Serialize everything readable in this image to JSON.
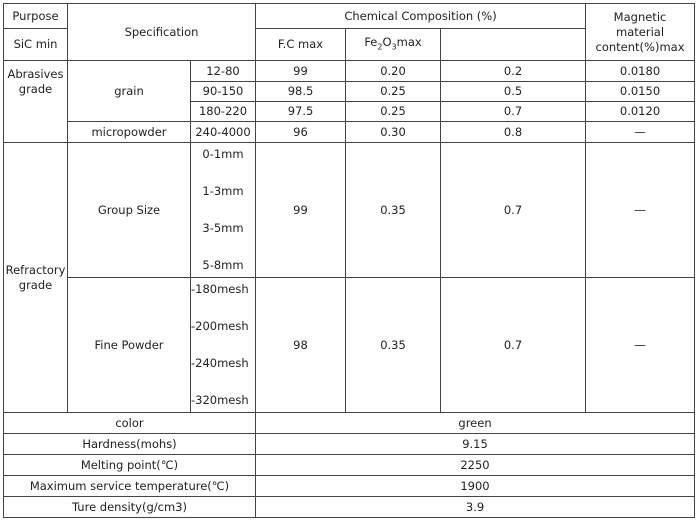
{
  "header": {
    "purpose": "Purpose",
    "specification": "Specification",
    "chemical": "Chemical Composition (%)",
    "sic": "SiC min",
    "fc": "F.C max",
    "fe2o3": [
      "Fe",
      "2",
      "O",
      "3",
      "max"
    ],
    "magnetic": [
      "Magnetic",
      "material",
      "content(%)max"
    ]
  },
  "abrasives": {
    "label": "Abrasives grade",
    "grain": {
      "label": "grain",
      "rows": [
        [
          "12-80",
          "99",
          "0.20",
          "0.2",
          "0.0180"
        ],
        [
          "90-150",
          "98.5",
          "0.25",
          "0.5",
          "0.0150"
        ],
        [
          "180-220",
          "97.5",
          "0.25",
          "0.7",
          "0.0120"
        ]
      ]
    },
    "micropowder": {
      "label": "micropowder",
      "row": [
        "240-4000",
        "96",
        "0.30",
        "0.8",
        "—"
      ]
    }
  },
  "refractory": {
    "label": "Refractory grade",
    "group_size": {
      "label": "Group Size",
      "sizes": [
        "0-1mm",
        "1-3mm",
        "3-5mm",
        "5-8mm"
      ],
      "row": [
        "99",
        "0.35",
        "0.7",
        "—"
      ]
    },
    "fine_powder": {
      "label": "Fine Powder",
      "sizes": [
        "-180mesh",
        "-200mesh",
        "-240mesh",
        "-320mesh"
      ],
      "row": [
        "98",
        "0.35",
        "0.7",
        "—"
      ]
    }
  },
  "properties": [
    [
      "color",
      "green"
    ],
    [
      "Hardness(mohs)",
      "9.15"
    ],
    [
      "Melting point(℃)",
      "2250"
    ],
    [
      "Maximum service temperature(℃)",
      "1900"
    ],
    [
      "Ture density(g/cm3)",
      "3.9"
    ]
  ]
}
